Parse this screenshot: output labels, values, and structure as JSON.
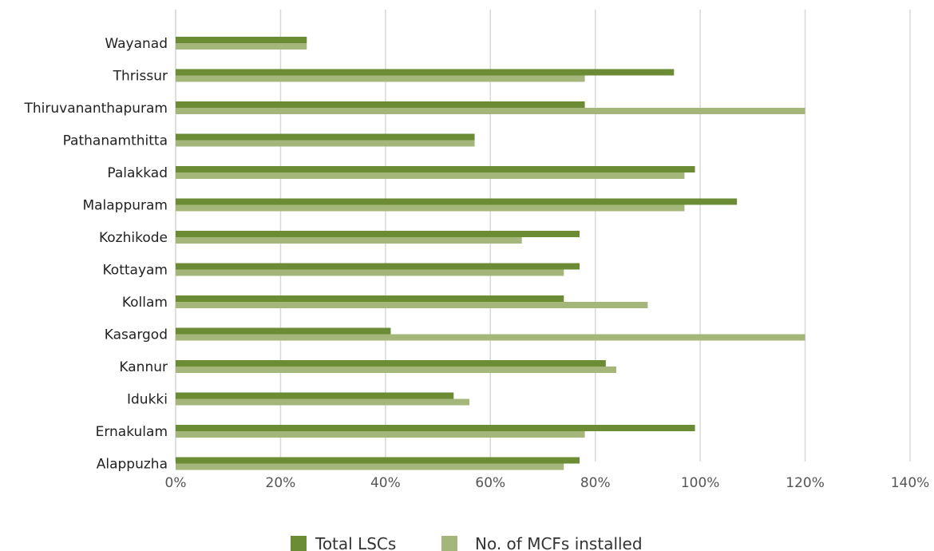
{
  "chart_data": {
    "type": "bar",
    "orientation": "horizontal",
    "categories": [
      "Wayanad",
      "Thrissur",
      "Thiruvananthapuram",
      "Pathanamthitta",
      "Palakkad",
      "Malappuram",
      "Kozhikode",
      "Kottayam",
      "Kollam",
      "Kasargod",
      "Kannur",
      "Idukki",
      "Ernakulam",
      "Alappuzha"
    ],
    "series": [
      {
        "name": "Total LSCs",
        "color": "#6b8c35",
        "values": [
          0.25,
          0.95,
          0.78,
          0.57,
          0.99,
          1.07,
          0.77,
          0.77,
          0.74,
          0.41,
          0.82,
          0.53,
          0.99,
          0.77
        ]
      },
      {
        "name": "No. of MCFs installed",
        "color": "#a4b67a",
        "values": [
          0.25,
          0.78,
          1.2,
          0.57,
          0.97,
          0.97,
          0.66,
          0.74,
          0.9,
          1.2,
          0.84,
          0.56,
          0.78,
          0.74
        ]
      }
    ],
    "xlim": [
      0,
      1.4
    ],
    "xticks": [
      "0%",
      "20%",
      "40%",
      "60%",
      "80%",
      "100%",
      "120%",
      "140%"
    ],
    "grid": true,
    "legend": "bottom"
  }
}
